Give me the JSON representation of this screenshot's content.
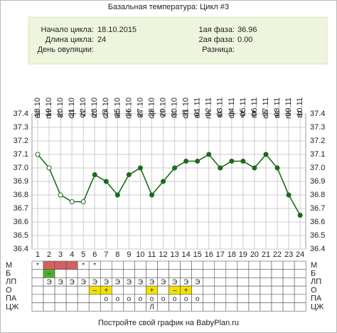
{
  "chart_data": {
    "type": "line",
    "title": "Базальная температура: Цикл #3",
    "info_left": [
      {
        "label": "Начало цикла:",
        "value": "18.10.2015"
      },
      {
        "label": "Длина цикла:",
        "value": "24"
      },
      {
        "label": "День овуляции:"
      }
    ],
    "info_right": [
      {
        "label": "1ая фаза:",
        "value": "36.96"
      },
      {
        "label": "2ая фаза:",
        "value": "0.00"
      },
      {
        "label": "Разница:"
      }
    ],
    "categories": [
      1,
      2,
      3,
      4,
      5,
      6,
      7,
      8,
      9,
      10,
      11,
      12,
      13,
      14,
      15,
      16,
      17,
      18,
      19,
      20,
      21,
      22,
      23,
      24
    ],
    "weekdays": [
      "вс",
      "пн",
      "вт",
      "ср",
      "чт",
      "пт",
      "сб",
      "вс",
      "пн",
      "вт",
      "ср",
      "чт",
      "пт",
      "сб",
      "вс",
      "пн",
      "вт",
      "ср",
      "чт",
      "пт",
      "сб",
      "вс",
      "пн",
      "вт"
    ],
    "dates": [
      "18.10",
      "19.10",
      "20.10",
      "21.10",
      "22.10",
      "23.10",
      "24.10",
      "25.10",
      "26.10",
      "27.10",
      "28.10",
      "29.10",
      "30.10",
      "31.10",
      "01.11",
      "02.11",
      "03.11",
      "04.11",
      "05.11",
      "06.11",
      "07.11",
      "08.11",
      "09.11",
      "10.11"
    ],
    "series": [
      {
        "color": "#1a6b1a",
        "values": [
          37.1,
          37.0,
          36.8,
          36.75,
          36.75,
          36.95,
          36.9,
          36.8,
          36.95,
          37.0,
          36.8,
          36.9,
          37.0,
          37.05,
          37.05,
          37.1,
          37.0,
          37.05,
          37.05,
          37.0,
          37.1,
          37.0,
          36.8,
          36.65
        ],
        "point_styles": [
          "open",
          "open",
          "open",
          "open",
          "open",
          "filled",
          "filled",
          "filled",
          "filled",
          "filled",
          "filled",
          "filled",
          "filled",
          "filled",
          "filled",
          "filled",
          "filled",
          "filled",
          "filled",
          "filled",
          "filled",
          "filled",
          "filled",
          "filled"
        ]
      }
    ],
    "ylim": [
      36.4,
      37.4
    ],
    "yticks": [
      36.4,
      36.5,
      36.6,
      36.7,
      36.8,
      36.9,
      {
        "value": 37.0,
        "label": "37.0"
      },
      37.1,
      37.2,
      37.3,
      37.4
    ],
    "grid": true,
    "table": {
      "rows": [
        {
          "label": "М",
          "color": "#e03030",
          "cells": [
            "*",
            null,
            null,
            null,
            "*",
            "*",
            null,
            null,
            null,
            null,
            null,
            null,
            null,
            null,
            null,
            null,
            null,
            null,
            null,
            null,
            null,
            null,
            null,
            null
          ],
          "fills": [
            null,
            "#d46060",
            "#d46060",
            "#d46060",
            null,
            null,
            null,
            null,
            null,
            null,
            null,
            null,
            null,
            null,
            null,
            null,
            null,
            null,
            null,
            null,
            null,
            null,
            null,
            null
          ]
        },
        {
          "label": "Б",
          "color": "#ffffff",
          "cells": [
            null,
            "–",
            null,
            null,
            null,
            null,
            null,
            null,
            null,
            null,
            null,
            null,
            null,
            null,
            null,
            null,
            null,
            null,
            null,
            null,
            null,
            null,
            null,
            null
          ],
          "fills": [
            null,
            "#4caf2a",
            null,
            null,
            null,
            null,
            null,
            null,
            null,
            null,
            null,
            null,
            null,
            null,
            null,
            null,
            null,
            null,
            null,
            null,
            null,
            null,
            null,
            null
          ]
        },
        {
          "label": "ЛП",
          "color": "#222222",
          "cells": [
            null,
            "Э",
            "Э",
            "Э",
            "Э",
            "Э",
            "Э",
            "Э",
            "Э",
            "Э",
            "Э",
            "Э",
            "Э",
            "Э",
            "Э",
            null,
            null,
            null,
            null,
            null,
            null,
            null,
            null,
            null
          ],
          "fills": [
            null,
            null,
            null,
            null,
            null,
            null,
            null,
            null,
            null,
            null,
            null,
            null,
            null,
            null,
            null,
            null,
            null,
            null,
            null,
            null,
            null,
            null,
            null,
            null
          ]
        },
        {
          "label": "О",
          "color": "#c02020",
          "cells": [
            null,
            null,
            null,
            null,
            null,
            "–",
            "+",
            null,
            null,
            null,
            "+",
            null,
            "–",
            "+",
            null,
            null,
            null,
            null,
            null,
            null,
            null,
            null,
            null,
            null
          ],
          "fills": [
            null,
            null,
            null,
            null,
            null,
            "#f5e000",
            "#f5e000",
            null,
            null,
            null,
            "#f5e000",
            null,
            "#f5e000",
            "#f5e000",
            null,
            null,
            null,
            null,
            null,
            null,
            null,
            null,
            null,
            null
          ]
        },
        {
          "label": "ПА",
          "color": "#e03030",
          "cells": [
            null,
            null,
            null,
            null,
            null,
            null,
            "o",
            "o",
            "o",
            "o",
            "o",
            "o",
            "o",
            "o",
            "o",
            null,
            null,
            null,
            null,
            null,
            null,
            null,
            null,
            null
          ],
          "fills": [
            null,
            null,
            null,
            null,
            null,
            null,
            null,
            null,
            null,
            null,
            null,
            null,
            null,
            null,
            null,
            null,
            null,
            null,
            null,
            null,
            null,
            null,
            null,
            null
          ]
        },
        {
          "label": "ЦЖ",
          "color": "#222222",
          "cells": [
            null,
            null,
            null,
            null,
            null,
            null,
            null,
            null,
            null,
            null,
            "Л",
            null,
            null,
            null,
            null,
            null,
            null,
            null,
            null,
            null,
            null,
            null,
            null,
            null
          ],
          "fills": [
            null,
            null,
            null,
            null,
            null,
            null,
            null,
            null,
            null,
            null,
            null,
            null,
            null,
            null,
            null,
            null,
            null,
            null,
            null,
            null,
            null,
            null,
            null,
            null
          ]
        }
      ]
    },
    "footer": "Постройте свой график на BabyPlan.ru"
  }
}
